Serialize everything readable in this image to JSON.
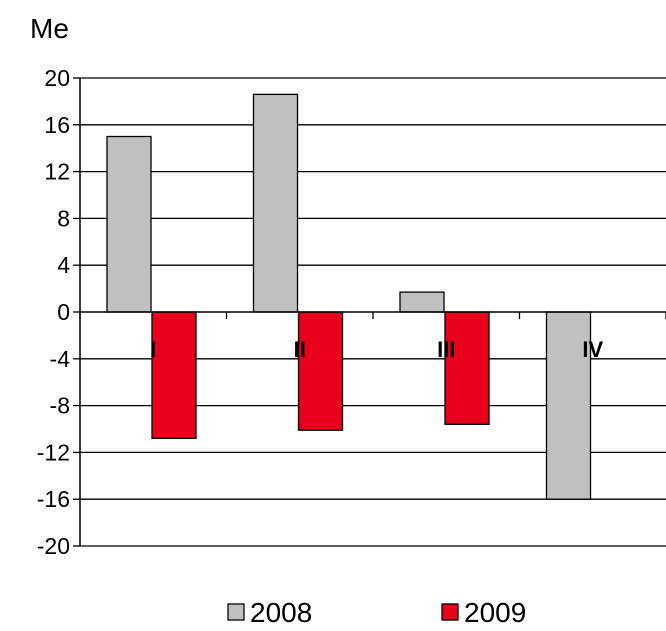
{
  "chart_data": {
    "type": "bar",
    "unit_label": "Me",
    "categories": [
      "I",
      "II",
      "III",
      "IV"
    ],
    "series": [
      {
        "name": "2008",
        "color": "#c0c0c0",
        "values": [
          15,
          18.6,
          1.7,
          -16
        ]
      },
      {
        "name": "2009",
        "color": "#e8001c",
        "values": [
          -10.8,
          -10.1,
          -9.6,
          null
        ]
      }
    ],
    "yticks": [
      20,
      16,
      12,
      8,
      4,
      0,
      -4,
      -8,
      -12,
      -16,
      -20
    ],
    "ylim": [
      -20,
      20
    ],
    "grid": true,
    "legend": "bottom"
  }
}
